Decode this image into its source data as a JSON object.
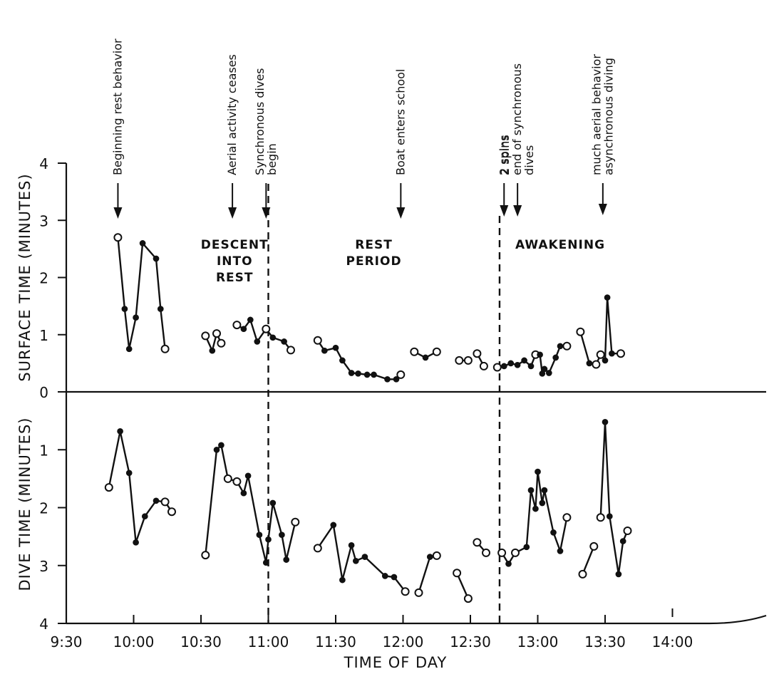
{
  "chart_data": {
    "type": "line",
    "xlabel": "TIME OF DAY",
    "x_tick_labels": [
      "9:30",
      "10:00",
      "10:30",
      "11:00",
      "11:30",
      "12:00",
      "12:30",
      "13:00",
      "13:30",
      "14:00"
    ],
    "panels": [
      {
        "id": "surface",
        "ylabel": "SURFACE TIME (MINUTES)",
        "ylim": [
          0,
          4
        ],
        "y_tick_labels": [
          "0",
          "1",
          "2",
          "3",
          "4"
        ],
        "segments": [
          {
            "points": [
              [
                "09:53",
                2.7,
                "open"
              ],
              [
                "09:56",
                1.45,
                "filled"
              ],
              [
                "09:58",
                0.75,
                "filled"
              ],
              [
                "10:01",
                1.3,
                "filled"
              ],
              [
                "10:04",
                2.6,
                "filled"
              ],
              [
                "10:10",
                2.33,
                "filled"
              ],
              [
                "10:12",
                1.45,
                "filled"
              ],
              [
                "10:14",
                0.75,
                "open"
              ]
            ]
          },
          {
            "points": [
              [
                "10:32",
                0.98,
                "open"
              ],
              [
                "10:35",
                0.72,
                "filled"
              ],
              [
                "10:37",
                1.02,
                "open"
              ],
              [
                "10:39",
                0.85,
                "open"
              ]
            ]
          },
          {
            "points": [
              [
                "10:46",
                1.17,
                "open"
              ],
              [
                "10:49",
                1.1,
                "filled"
              ],
              [
                "10:52",
                1.26,
                "filled"
              ],
              [
                "10:55",
                0.88,
                "filled"
              ],
              [
                "10:59",
                1.1,
                "open"
              ],
              [
                "11:02",
                0.95,
                "filled"
              ],
              [
                "11:07",
                0.88,
                "filled"
              ],
              [
                "11:10",
                0.73,
                "open"
              ]
            ]
          },
          {
            "points": [
              [
                "11:22",
                0.9,
                "open"
              ],
              [
                "11:25",
                0.72,
                "filled"
              ],
              [
                "11:30",
                0.77,
                "filled"
              ],
              [
                "11:33",
                0.55,
                "filled"
              ],
              [
                "11:37",
                0.33,
                "filled"
              ],
              [
                "11:40",
                0.32,
                "filled"
              ],
              [
                "11:44",
                0.3,
                "filled"
              ],
              [
                "11:47",
                0.3,
                "filled"
              ],
              [
                "11:53",
                0.22,
                "filled"
              ],
              [
                "11:57",
                0.22,
                "filled"
              ],
              [
                "11:59",
                0.3,
                "open"
              ]
            ]
          },
          {
            "points": [
              [
                "12:05",
                0.7,
                "open"
              ],
              [
                "12:10",
                0.6,
                "filled"
              ],
              [
                "12:15",
                0.7,
                "open"
              ]
            ]
          },
          {
            "points": [
              [
                "12:25",
                0.55,
                "open"
              ],
              [
                "12:29",
                0.55,
                "open"
              ]
            ]
          },
          {
            "points": [
              [
                "12:33",
                0.67,
                "open"
              ],
              [
                "12:36",
                0.45,
                "open"
              ]
            ]
          },
          {
            "points": [
              [
                "12:42",
                0.43,
                "open"
              ],
              [
                "12:45",
                0.45,
                "filled"
              ],
              [
                "12:48",
                0.5,
                "filled"
              ],
              [
                "12:51",
                0.47,
                "filled"
              ],
              [
                "12:54",
                0.55,
                "filled"
              ],
              [
                "12:57",
                0.45,
                "filled"
              ],
              [
                "12:59",
                0.65,
                "open"
              ],
              [
                "13:01",
                0.65,
                "filled"
              ],
              [
                "13:02",
                0.32,
                "filled"
              ],
              [
                "13:03",
                0.4,
                "filled"
              ],
              [
                "13:05",
                0.33,
                "filled"
              ],
              [
                "13:08",
                0.6,
                "filled"
              ],
              [
                "13:10",
                0.8,
                "filled"
              ],
              [
                "13:13",
                0.8,
                "open"
              ]
            ]
          },
          {
            "points": [
              [
                "13:19",
                1.05,
                "open"
              ],
              [
                "13:23",
                0.5,
                "filled"
              ],
              [
                "13:26",
                0.48,
                "open"
              ],
              [
                "13:28",
                0.65,
                "open"
              ],
              [
                "13:30",
                0.55,
                "filled"
              ],
              [
                "13:31",
                1.65,
                "filled"
              ],
              [
                "13:33",
                0.67,
                "filled"
              ],
              [
                "13:37",
                0.67,
                "open"
              ]
            ]
          }
        ]
      },
      {
        "id": "dive",
        "ylabel": "DIVE TIME (MINUTES)",
        "ylim": [
          0,
          4
        ],
        "y_tick_labels": [
          "1",
          "2",
          "3",
          "4"
        ],
        "segments": [
          {
            "points": [
              [
                "09:49",
                1.65,
                "open"
              ],
              [
                "09:54",
                0.68,
                "filled"
              ],
              [
                "09:58",
                1.4,
                "filled"
              ],
              [
                "10:01",
                2.6,
                "filled"
              ],
              [
                "10:05",
                2.15,
                "filled"
              ],
              [
                "10:10",
                1.88,
                "filled"
              ],
              [
                "10:14",
                1.9,
                "open"
              ],
              [
                "10:17",
                2.07,
                "open"
              ]
            ]
          },
          {
            "points": [
              [
                "10:32",
                2.82,
                "open"
              ],
              [
                "10:37",
                1.0,
                "filled"
              ],
              [
                "10:39",
                0.92,
                "filled"
              ],
              [
                "10:42",
                1.5,
                "open"
              ],
              [
                "10:46",
                1.55,
                "open"
              ],
              [
                "10:49",
                1.75,
                "filled"
              ],
              [
                "10:51",
                1.45,
                "filled"
              ],
              [
                "10:56",
                2.47,
                "filled"
              ],
              [
                "10:59",
                2.95,
                "filled"
              ],
              [
                "11:00",
                2.55,
                "filled"
              ],
              [
                "11:02",
                1.92,
                "filled"
              ],
              [
                "11:06",
                2.47,
                "filled"
              ],
              [
                "11:08",
                2.9,
                "filled"
              ],
              [
                "11:12",
                2.25,
                "open"
              ]
            ]
          },
          {
            "points": [
              [
                "11:22",
                2.7,
                "open"
              ],
              [
                "11:29",
                2.3,
                "filled"
              ],
              [
                "11:33",
                3.25,
                "filled"
              ],
              [
                "11:37",
                2.65,
                "filled"
              ],
              [
                "11:39",
                2.92,
                "filled"
              ],
              [
                "11:43",
                2.85,
                "filled"
              ],
              [
                "11:52",
                3.18,
                "filled"
              ],
              [
                "11:56",
                3.2,
                "filled"
              ],
              [
                "12:01",
                3.45,
                "open"
              ]
            ]
          },
          {
            "points": [
              [
                "12:07",
                3.47,
                "open"
              ],
              [
                "12:12",
                2.85,
                "filled"
              ],
              [
                "12:15",
                2.83,
                "open"
              ]
            ]
          },
          {
            "points": [
              [
                "12:24",
                3.13,
                "open"
              ],
              [
                "12:29",
                3.57,
                "open"
              ]
            ]
          },
          {
            "points": [
              [
                "12:33",
                2.6,
                "open"
              ],
              [
                "12:37",
                2.78,
                "open"
              ]
            ]
          },
          {
            "points": [
              [
                "12:44",
                2.78,
                "open"
              ],
              [
                "12:47",
                2.97,
                "filled"
              ],
              [
                "12:50",
                2.78,
                "open"
              ],
              [
                "12:55",
                2.68,
                "filled"
              ],
              [
                "12:57",
                1.7,
                "filled"
              ],
              [
                "12:59",
                2.02,
                "filled"
              ],
              [
                "13:00",
                1.38,
                "filled"
              ],
              [
                "13:02",
                1.92,
                "filled"
              ],
              [
                "13:03",
                1.7,
                "filled"
              ],
              [
                "13:07",
                2.43,
                "filled"
              ],
              [
                "13:10",
                2.75,
                "filled"
              ],
              [
                "13:13",
                2.17,
                "open"
              ]
            ]
          },
          {
            "points": [
              [
                "13:20",
                3.15,
                "open"
              ],
              [
                "13:25",
                2.67,
                "open"
              ]
            ]
          },
          {
            "points": [
              [
                "13:28",
                2.17,
                "open"
              ],
              [
                "13:30",
                0.52,
                "filled"
              ],
              [
                "13:32",
                2.15,
                "filled"
              ],
              [
                "13:36",
                3.15,
                "filled"
              ],
              [
                "13:38",
                2.58,
                "filled"
              ],
              [
                "13:40",
                2.4,
                "open"
              ]
            ]
          }
        ]
      }
    ],
    "phase_labels": [
      {
        "lines": [
          "DESCENT",
          "INTO",
          "REST"
        ],
        "x": "10:45"
      },
      {
        "lines": [
          "REST",
          "PERIOD"
        ],
        "x": "11:47"
      },
      {
        "lines": [
          "AWAKENING"
        ],
        "x": "13:10"
      }
    ],
    "dividers": [
      {
        "x": "11:00"
      },
      {
        "x": "12:43"
      }
    ],
    "annotations": [
      {
        "lines": [
          "Beginning rest behavior"
        ],
        "x": "09:53"
      },
      {
        "lines": [
          "Aerial activity ceases"
        ],
        "x": "10:44"
      },
      {
        "lines": [
          "Synchronous dives",
          "begin"
        ],
        "x": "10:59"
      },
      {
        "lines": [
          "Boat enters school"
        ],
        "x": "11:59"
      },
      {
        "lines": [
          "2 spins"
        ],
        "x": "12:45"
      },
      {
        "lines": [
          "2 spins",
          "end of synchronous",
          "dives"
        ],
        "x": "12:51"
      },
      {
        "lines": [
          "much aerial behavior",
          "asynchronous diving"
        ],
        "x": "13:29"
      }
    ]
  }
}
